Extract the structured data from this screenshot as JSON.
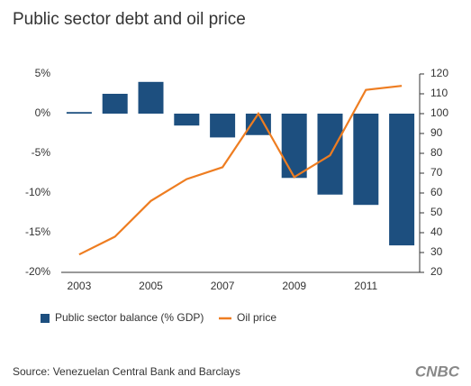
{
  "chart_data": {
    "type": "bar",
    "title": "Public sector debt and oil price",
    "categories": [
      "2003",
      null,
      "2005",
      null,
      "2007",
      null,
      "2009",
      null,
      "2011",
      null
    ],
    "series": [
      {
        "name": "Public sector balance (% GDP)",
        "color": "#1d4f7f",
        "values": [
          0.2,
          2.5,
          4.0,
          -1.5,
          -3.0,
          -2.7,
          -8.1,
          -10.2,
          -11.5,
          -16.6
        ]
      },
      {
        "name": "Oil price",
        "type": "line",
        "axis": "y2",
        "color": "#ee7d21",
        "values": [
          29,
          38,
          56,
          67,
          73,
          100,
          68,
          79,
          112,
          114
        ]
      }
    ],
    "ylim": [
      -20,
      5
    ],
    "yticks": [
      {
        "value": 5,
        "label": "5%"
      },
      {
        "value": 0,
        "label": "0%"
      },
      {
        "value": -5,
        "label": "-5%"
      },
      {
        "value": -10,
        "label": "-10%"
      },
      {
        "value": -15,
        "label": "-15%"
      },
      {
        "value": -20,
        "label": "-20%"
      }
    ],
    "y2lim": [
      20,
      120
    ],
    "y2ticks": [
      20,
      30,
      40,
      50,
      60,
      70,
      80,
      90,
      100,
      110,
      120
    ],
    "source": "Source: Venezuelan Central Bank and Barclays",
    "logo": "CNBC"
  }
}
